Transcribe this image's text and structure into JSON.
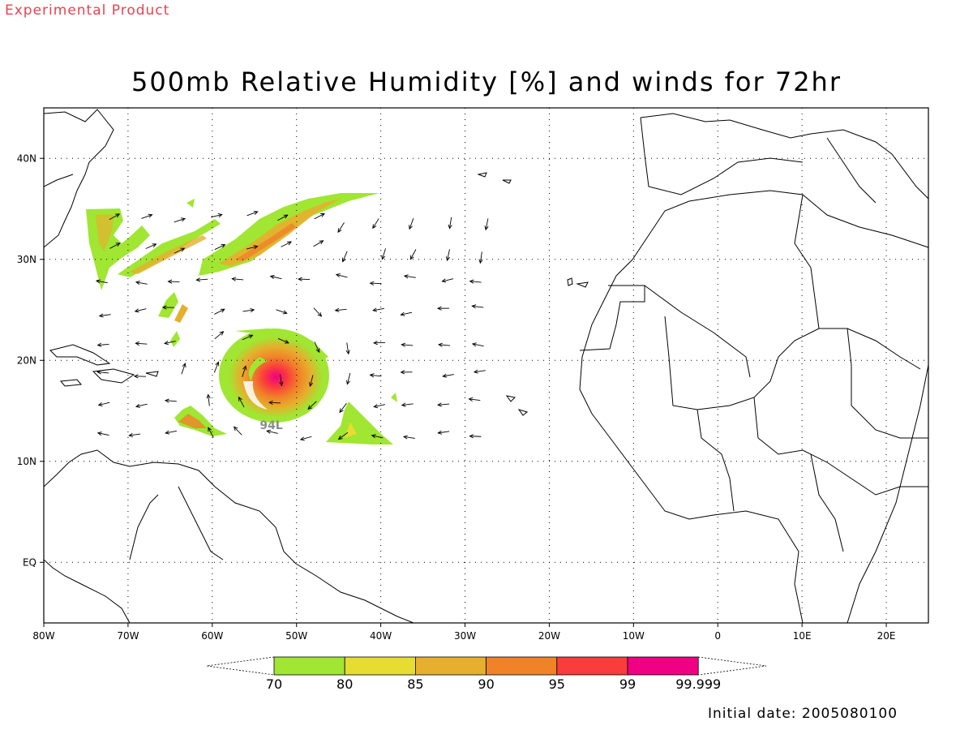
{
  "header": {
    "top_label": "Experimental Product",
    "title": "500mb Relative Humidity [%] and winds for 72hr"
  },
  "map": {
    "lon_range": [
      -80,
      25
    ],
    "lat_range": [
      -6,
      45
    ],
    "lon_ticks": [
      {
        "value": -80,
        "label": "80W"
      },
      {
        "value": -70,
        "label": "70W"
      },
      {
        "value": -60,
        "label": "60W"
      },
      {
        "value": -50,
        "label": "50W"
      },
      {
        "value": -40,
        "label": "40W"
      },
      {
        "value": -30,
        "label": "30W"
      },
      {
        "value": -20,
        "label": "20W"
      },
      {
        "value": -10,
        "label": "10W"
      },
      {
        "value": 0,
        "label": "0"
      },
      {
        "value": 10,
        "label": "10E"
      },
      {
        "value": 20,
        "label": "20E"
      }
    ],
    "lat_ticks": [
      {
        "value": 40,
        "label": "40N"
      },
      {
        "value": 30,
        "label": "30N"
      },
      {
        "value": 20,
        "label": "20N"
      },
      {
        "value": 10,
        "label": "10N"
      },
      {
        "value": 0,
        "label": "EQ"
      }
    ],
    "gridlines": "dotted",
    "storm_label": {
      "text": "94L",
      "lon": -53,
      "lat": 13.2
    }
  },
  "colorbar": {
    "colors": [
      "#a0e632",
      "#e6dc32",
      "#e6af2d",
      "#f08228",
      "#fa3c3c",
      "#f00082"
    ],
    "labels": [
      "70",
      "80",
      "85",
      "90",
      "95",
      "99",
      "99.999"
    ]
  },
  "footer": {
    "initial_date": "Initial date: 2005080100"
  }
}
